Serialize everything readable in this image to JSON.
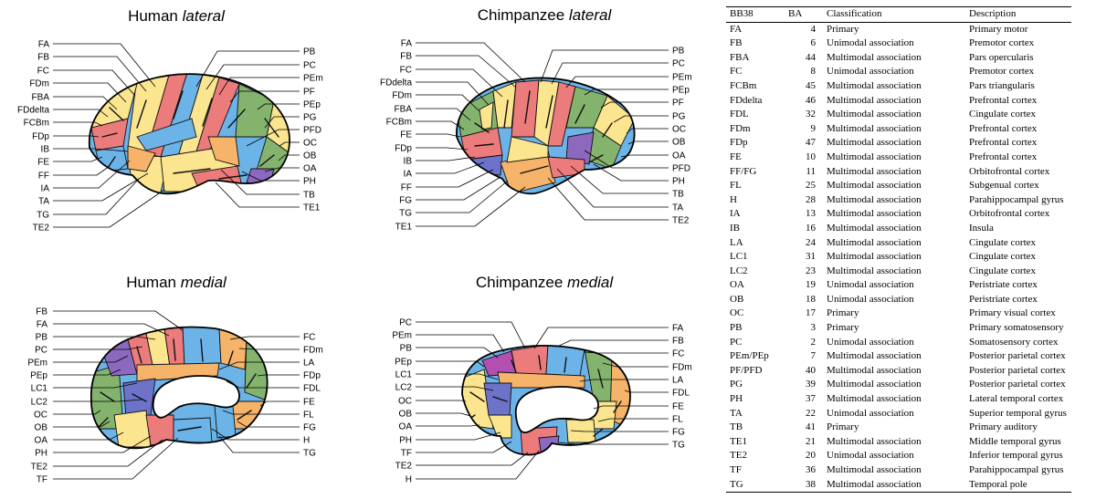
{
  "colors": {
    "yellow": "#fbe58f",
    "blue": "#6cb3e8",
    "red": "#ec7b7c",
    "green": "#84b36e",
    "orange": "#f6b36a",
    "purple": "#8c68bf",
    "indigo": "#6c73c8",
    "magenta": "#b24fb1",
    "line": "#000000"
  },
  "panels": [
    {
      "id": "human-lateral",
      "title_prefix": "Human ",
      "title_italic": "lateral",
      "left_labels": [
        "FA",
        "FB",
        "FC",
        "FDm",
        "FBA",
        "FDdelta",
        "FCBm",
        "FDp",
        "IB",
        "FE",
        "FF",
        "IA",
        "TA",
        "TG",
        "TE2"
      ],
      "right_labels": [
        "PB",
        "PC",
        "PEm",
        "PF",
        "PEp",
        "PG",
        "PFD",
        "OC",
        "OB",
        "OA",
        "PH",
        "TB",
        "TE1"
      ]
    },
    {
      "id": "chimp-lateral",
      "title_prefix": "Chimpanzee ",
      "title_italic": "lateral",
      "left_labels": [
        "FA",
        "FB",
        "FC",
        "FDdelta",
        "FDm",
        "FBA",
        "FCBm",
        "FE",
        "FDp",
        "IB",
        "IA",
        "FF",
        "FG",
        "TG",
        "TE1"
      ],
      "right_labels": [
        "PB",
        "PC",
        "PEm",
        "PEp",
        "PF",
        "PG",
        "OC",
        "OB",
        "OA",
        "PFD",
        "PH",
        "TB",
        "TA",
        "TE2"
      ]
    },
    {
      "id": "human-medial",
      "title_prefix": "Human ",
      "title_italic": "medial",
      "left_labels": [
        "FB",
        "FA",
        "PB",
        "PC",
        "PEm",
        "PEp",
        "LC1",
        "LC2",
        "OC",
        "OB",
        "OA",
        "PH",
        "TE2",
        "TF"
      ],
      "right_labels": [
        "FC",
        "FDm",
        "LA",
        "FDp",
        "FDL",
        "FE",
        "FL",
        "FG",
        "H",
        "TG"
      ]
    },
    {
      "id": "chimp-medial",
      "title_prefix": "Chimpanzee ",
      "title_italic": "medial",
      "left_labels": [
        "PC",
        "PEm",
        "PB",
        "PEp",
        "LC1",
        "LC2",
        "OC",
        "OB",
        "OA",
        "PH",
        "TF",
        "TE2",
        "H"
      ],
      "right_labels": [
        "FA",
        "FB",
        "FC",
        "FDm",
        "LA",
        "FDL",
        "FE",
        "FL",
        "FG",
        "TG"
      ]
    }
  ],
  "table": {
    "headers": [
      "BB38",
      "BA",
      "Classification",
      "Description"
    ],
    "rows": [
      [
        "FA",
        "4",
        "Primary",
        "Primary motor"
      ],
      [
        "FB",
        "6",
        "Unimodal association",
        "Premotor cortex"
      ],
      [
        "FBA",
        "44",
        "Multimodal association",
        "Pars opercularis"
      ],
      [
        "FC",
        "8",
        "Unimodal association",
        "Premotor cortex"
      ],
      [
        "FCBm",
        "45",
        "Multimodal association",
        "Pars triangularis"
      ],
      [
        "FDdelta",
        "46",
        "Multimodal association",
        "Prefrontal cortex"
      ],
      [
        "FDL",
        "32",
        "Multimodal association",
        "Cingulate cortex"
      ],
      [
        "FDm",
        "9",
        "Multimodal association",
        "Prefrontal cortex"
      ],
      [
        "FDp",
        "47",
        "Multimodal association",
        "Prefrontal cortex"
      ],
      [
        "FE",
        "10",
        "Multimodal association",
        "Prefrontal cortex"
      ],
      [
        "FF/FG",
        "11",
        "Multimodal association",
        "Orbitofrontal cortex"
      ],
      [
        "FL",
        "25",
        "Multimodal association",
        "Subgenual cortex"
      ],
      [
        "H",
        "28",
        "Multimodal association",
        "Parahippocampal gyrus"
      ],
      [
        "IA",
        "13",
        "Multimodal association",
        "Orbitofrontal cortex"
      ],
      [
        "IB",
        "16",
        "Multimodal association",
        "Insula"
      ],
      [
        "LA",
        "24",
        "Multimodal association",
        "Cingulate cortex"
      ],
      [
        "LC1",
        "31",
        "Multimodal association",
        "Cingulate cortex"
      ],
      [
        "LC2",
        "23",
        "Multimodal association",
        "Cingulate cortex"
      ],
      [
        "OA",
        "19",
        "Unimodal association",
        "Peristriate cortex"
      ],
      [
        "OB",
        "18",
        "Unimodal association",
        "Peristriate cortex"
      ],
      [
        "OC",
        "17",
        "Primary",
        "Primary visual cortex"
      ],
      [
        "PB",
        "3",
        "Primary",
        "Primary somatosensory"
      ],
      [
        "PC",
        "2",
        "Unimodal association",
        "Somatosensory cortex"
      ],
      [
        "PEm/PEp",
        "7",
        "Multimodal association",
        "Posterior parietal cortex"
      ],
      [
        "PF/PFD",
        "40",
        "Multimodal association",
        "Posterior parietal cortex"
      ],
      [
        "PG",
        "39",
        "Multimodal association",
        "Posterior parietal cortex"
      ],
      [
        "PH",
        "37",
        "Multimodal association",
        "Lateral temporal cortex"
      ],
      [
        "TA",
        "22",
        "Unimodal association",
        "Superior temporal gyrus"
      ],
      [
        "TB",
        "41",
        "Primary",
        "Primary auditory"
      ],
      [
        "TE1",
        "21",
        "Multimodal association",
        "Middle temporal gyrus"
      ],
      [
        "TE2",
        "20",
        "Unimodal association",
        "Inferior temporal gyrus"
      ],
      [
        "TF",
        "36",
        "Multimodal association",
        "Parahippocampal gyrus"
      ],
      [
        "TG",
        "38",
        "Multimodal association",
        "Temporal pole"
      ]
    ]
  }
}
